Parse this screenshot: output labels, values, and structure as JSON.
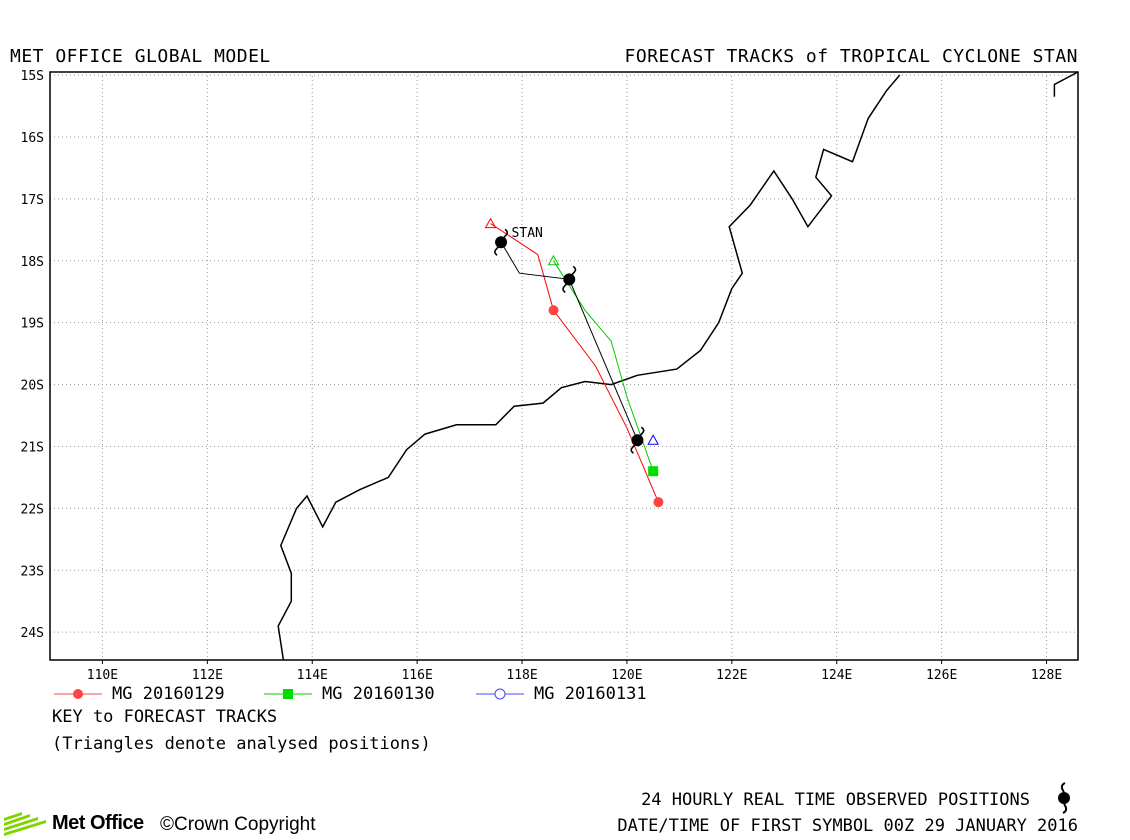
{
  "header": {
    "left": "MET OFFICE GLOBAL MODEL",
    "right": "FORECAST TRACKS of TROPICAL CYCLONE STAN"
  },
  "map": {
    "lon_min": 109.0,
    "lon_max": 128.6,
    "lat_min": -24.45,
    "lat_max": -14.95,
    "lon_ticks": [
      110,
      112,
      114,
      116,
      118,
      120,
      122,
      124,
      126,
      128
    ],
    "lon_labels": [
      "110E",
      "112E",
      "114E",
      "116E",
      "118E",
      "120E",
      "122E",
      "124E",
      "126E",
      "128E"
    ],
    "lat_ticks": [
      -15,
      -16,
      -17,
      -18,
      -19,
      -20,
      -21,
      -22,
      -23,
      -24
    ],
    "lat_labels": [
      "15S",
      "16S",
      "17S",
      "18S",
      "19S",
      "20S",
      "21S",
      "22S",
      "23S",
      "24S"
    ],
    "grid": "dotted",
    "storm_label": "STAN",
    "colors": {
      "coast": "#000000",
      "observed": "#000000"
    }
  },
  "chart_data": {
    "type": "map-tracks",
    "observed_track": [
      {
        "lon": 117.6,
        "lat": -17.7
      },
      {
        "lon": 118.9,
        "lat": -18.3
      },
      {
        "lon": 120.2,
        "lat": -20.9
      }
    ],
    "observed_path": [
      [
        117.6,
        -17.7
      ],
      [
        117.95,
        -18.2
      ],
      [
        118.9,
        -18.3
      ],
      [
        120.2,
        -20.9
      ]
    ],
    "forecasts": [
      {
        "name": "MG 20160129",
        "color": "#ff0000",
        "marker": "circle-filled",
        "analysed": {
          "lon": 117.4,
          "lat": -17.4
        },
        "points": [
          [
            117.4,
            -17.4
          ],
          [
            118.3,
            -17.9
          ],
          [
            118.6,
            -18.8
          ],
          [
            119.4,
            -19.7
          ],
          [
            120.0,
            -20.7
          ],
          [
            120.6,
            -21.9
          ]
        ],
        "markers": [
          [
            118.6,
            -18.8
          ],
          [
            120.6,
            -21.9
          ]
        ]
      },
      {
        "name": "MG 20160130",
        "color": "#00cc00",
        "marker": "square-filled",
        "analysed": {
          "lon": 118.6,
          "lat": -18.0
        },
        "points": [
          [
            118.6,
            -18.0
          ],
          [
            119.2,
            -18.8
          ],
          [
            119.7,
            -19.3
          ],
          [
            120.0,
            -20.2
          ],
          [
            120.5,
            -21.4
          ]
        ],
        "markers": [
          [
            120.5,
            -21.4
          ]
        ]
      },
      {
        "name": "MG 20160131",
        "color": "#0000ff",
        "marker": "circle-open",
        "analysed": {
          "lon": 120.5,
          "lat": -20.9
        },
        "points": [],
        "markers": []
      }
    ],
    "coastline": [
      [
        113.45,
        -24.45
      ],
      [
        113.35,
        -23.9
      ],
      [
        113.6,
        -23.5
      ],
      [
        113.6,
        -23.05
      ],
      [
        113.4,
        -22.6
      ],
      [
        113.7,
        -22.0
      ],
      [
        113.9,
        -21.8
      ],
      [
        114.2,
        -22.3
      ],
      [
        114.45,
        -21.9
      ],
      [
        114.9,
        -21.7
      ],
      [
        115.45,
        -21.5
      ],
      [
        115.8,
        -21.05
      ],
      [
        116.15,
        -20.8
      ],
      [
        116.75,
        -20.65
      ],
      [
        117.5,
        -20.65
      ],
      [
        117.85,
        -20.35
      ],
      [
        118.4,
        -20.3
      ],
      [
        118.75,
        -20.05
      ],
      [
        119.2,
        -19.95
      ],
      [
        119.7,
        -20.0
      ],
      [
        120.2,
        -19.85
      ],
      [
        120.95,
        -19.75
      ],
      [
        121.4,
        -19.45
      ],
      [
        121.75,
        -19.0
      ],
      [
        122.0,
        -18.45
      ],
      [
        122.2,
        -18.2
      ],
      [
        121.95,
        -17.45
      ],
      [
        122.35,
        -17.1
      ],
      [
        122.8,
        -16.55
      ],
      [
        123.15,
        -17.0
      ],
      [
        123.45,
        -17.45
      ],
      [
        123.9,
        -16.95
      ],
      [
        123.6,
        -16.65
      ],
      [
        123.75,
        -16.2
      ],
      [
        124.3,
        -16.4
      ],
      [
        124.6,
        -15.7
      ],
      [
        124.95,
        -15.25
      ],
      [
        125.2,
        -15.0
      ]
    ],
    "coastline2": [
      [
        128.15,
        -15.35
      ],
      [
        128.15,
        -15.15
      ],
      [
        128.6,
        -14.95
      ]
    ]
  },
  "legend": {
    "items": [
      {
        "label": "MG 20160129",
        "color": "#ff4444",
        "marker": "circle-filled"
      },
      {
        "label": "MG 20160130",
        "color": "#00cc00",
        "marker": "square-filled"
      },
      {
        "label": "MG 20160131",
        "color": "#4444ff",
        "marker": "circle-open"
      }
    ],
    "key_title": "KEY to FORECAST TRACKS",
    "key_note": "(Triangles denote analysed positions)"
  },
  "footer": {
    "observed": "24 HOURLY REAL TIME OBSERVED POSITIONS",
    "datetime": "DATE/TIME OF FIRST SYMBOL 00Z 29 JANUARY 2016",
    "logo": "Met Office",
    "copyright": "©Crown Copyright",
    "cyclone_icon": "cyclone-symbol-icon",
    "brand_color": "#7fd400"
  }
}
